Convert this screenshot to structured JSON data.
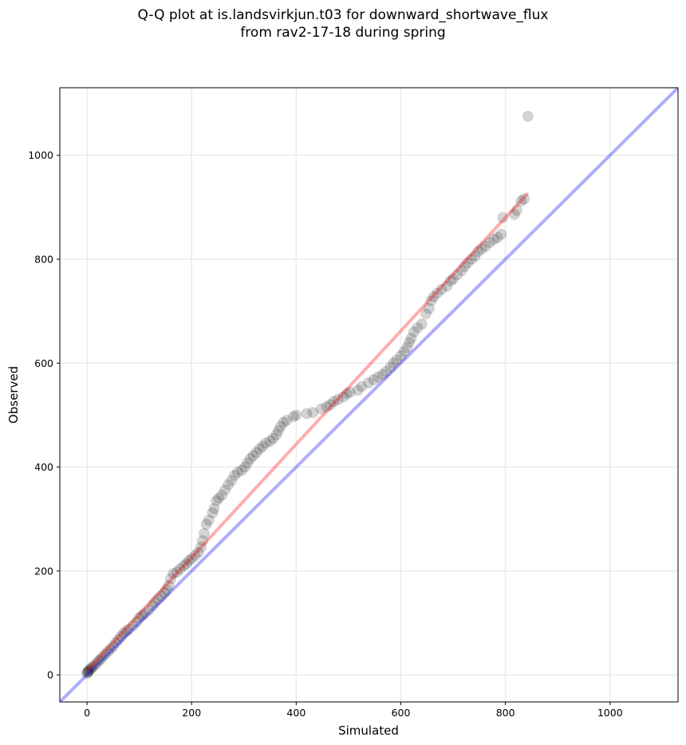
{
  "chart_data": {
    "type": "scatter",
    "title_lines": [
      "Q-Q plot at is.landsvirkjun.t03 for downward_shortwave_flux",
      "from rav2-17-18 during spring"
    ],
    "xlabel": "Simulated",
    "ylabel": "Observed",
    "xlim": [
      -52,
      1130
    ],
    "ylim": [
      -52,
      1130
    ],
    "xticks": [
      0,
      200,
      400,
      600,
      800,
      1000
    ],
    "yticks": [
      0,
      200,
      400,
      600,
      800,
      1000
    ],
    "grid": true,
    "colors": {
      "points": "#000000",
      "fit_line": "#ff0000",
      "identity_line": "#0000ff"
    },
    "fit_line": {
      "x": [
        0,
        843
      ],
      "y": [
        8,
        927
      ]
    },
    "identity_line": {
      "x": [
        -52,
        1130
      ],
      "y": [
        -52,
        1130
      ]
    },
    "points": [
      [
        0,
        3
      ],
      [
        1,
        5
      ],
      [
        2,
        6
      ],
      [
        3,
        8
      ],
      [
        5,
        10
      ],
      [
        8,
        12
      ],
      [
        10,
        15
      ],
      [
        14,
        18
      ],
      [
        18,
        22
      ],
      [
        22,
        27
      ],
      [
        26,
        30
      ],
      [
        30,
        35
      ],
      [
        35,
        40
      ],
      [
        40,
        45
      ],
      [
        45,
        50
      ],
      [
        50,
        55
      ],
      [
        55,
        62
      ],
      [
        60,
        68
      ],
      [
        65,
        74
      ],
      [
        70,
        80
      ],
      [
        75,
        84
      ],
      [
        80,
        88
      ],
      [
        88,
        95
      ],
      [
        95,
        102
      ],
      [
        100,
        110
      ],
      [
        105,
        114
      ],
      [
        110,
        118
      ],
      [
        118,
        125
      ],
      [
        125,
        133
      ],
      [
        130,
        140
      ],
      [
        136,
        146
      ],
      [
        142,
        152
      ],
      [
        148,
        158
      ],
      [
        152,
        164
      ],
      [
        156,
        172
      ],
      [
        160,
        185
      ],
      [
        165,
        195
      ],
      [
        172,
        198
      ],
      [
        178,
        204
      ],
      [
        185,
        210
      ],
      [
        190,
        214
      ],
      [
        195,
        220
      ],
      [
        200,
        224
      ],
      [
        207,
        230
      ],
      [
        213,
        236
      ],
      [
        218,
        246
      ],
      [
        221,
        258
      ],
      [
        224,
        272
      ],
      [
        228,
        290
      ],
      [
        233,
        298
      ],
      [
        240,
        312
      ],
      [
        243,
        320
      ],
      [
        247,
        335
      ],
      [
        252,
        340
      ],
      [
        258,
        346
      ],
      [
        264,
        356
      ],
      [
        270,
        366
      ],
      [
        276,
        374
      ],
      [
        282,
        384
      ],
      [
        288,
        390
      ],
      [
        296,
        394
      ],
      [
        302,
        400
      ],
      [
        307,
        408
      ],
      [
        312,
        416
      ],
      [
        318,
        422
      ],
      [
        324,
        428
      ],
      [
        330,
        435
      ],
      [
        336,
        440
      ],
      [
        342,
        446
      ],
      [
        350,
        450
      ],
      [
        356,
        455
      ],
      [
        362,
        462
      ],
      [
        366,
        470
      ],
      [
        370,
        478
      ],
      [
        376,
        486
      ],
      [
        382,
        490
      ],
      [
        395,
        497
      ],
      [
        400,
        500
      ],
      [
        420,
        503
      ],
      [
        432,
        505
      ],
      [
        448,
        512
      ],
      [
        458,
        516
      ],
      [
        465,
        520
      ],
      [
        472,
        526
      ],
      [
        480,
        530
      ],
      [
        490,
        535
      ],
      [
        497,
        541
      ],
      [
        503,
        544
      ],
      [
        518,
        548
      ],
      [
        525,
        555
      ],
      [
        538,
        562
      ],
      [
        548,
        568
      ],
      [
        556,
        573
      ],
      [
        565,
        578
      ],
      [
        572,
        584
      ],
      [
        580,
        592
      ],
      [
        586,
        600
      ],
      [
        592,
        606
      ],
      [
        600,
        614
      ],
      [
        606,
        622
      ],
      [
        612,
        630
      ],
      [
        616,
        640
      ],
      [
        620,
        648
      ],
      [
        625,
        660
      ],
      [
        632,
        668
      ],
      [
        640,
        675
      ],
      [
        648,
        695
      ],
      [
        654,
        705
      ],
      [
        658,
        720
      ],
      [
        663,
        728
      ],
      [
        670,
        735
      ],
      [
        678,
        742
      ],
      [
        688,
        748
      ],
      [
        695,
        758
      ],
      [
        700,
        762
      ],
      [
        708,
        770
      ],
      [
        716,
        778
      ],
      [
        722,
        786
      ],
      [
        728,
        793
      ],
      [
        735,
        800
      ],
      [
        742,
        806
      ],
      [
        748,
        815
      ],
      [
        755,
        820
      ],
      [
        762,
        825
      ],
      [
        770,
        832
      ],
      [
        778,
        838
      ],
      [
        785,
        842
      ],
      [
        792,
        848
      ],
      [
        795,
        880
      ],
      [
        817,
        886
      ],
      [
        822,
        894
      ],
      [
        830,
        912
      ],
      [
        836,
        916
      ],
      [
        843,
        1075
      ]
    ]
  }
}
